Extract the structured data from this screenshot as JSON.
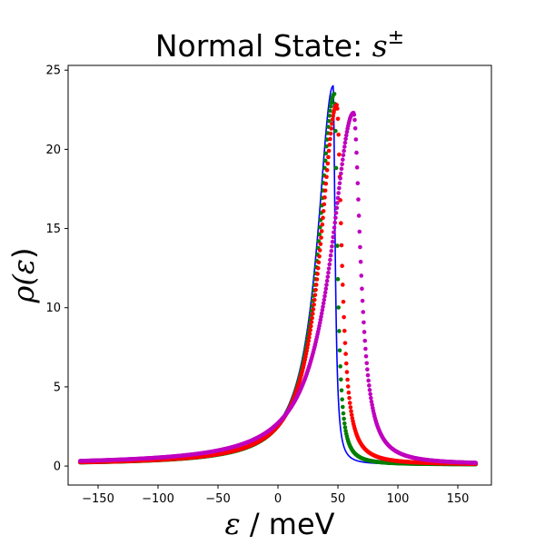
{
  "chart_data": {
    "type": "scatter",
    "title": {
      "prefix": "Normal State: ",
      "symbol": "s",
      "superscript": "±"
    },
    "xlabel": {
      "symbol": "ε",
      "text": " / meV"
    },
    "ylabel": {
      "prefix": "ρ(",
      "symbol": "ε",
      "suffix": ")"
    },
    "xlim": [
      -175,
      178
    ],
    "ylim": [
      -1.2,
      25.3
    ],
    "xticks": [
      -150,
      -100,
      -50,
      0,
      50,
      100,
      150
    ],
    "yticks": [
      0,
      5,
      10,
      15,
      20,
      25
    ],
    "grid": false,
    "legend": "none",
    "series": [
      {
        "name": "blue",
        "color": "#0000ff",
        "render": "line",
        "peak_x": 46,
        "peak_y": 24.0,
        "gamma_left": 16,
        "gamma_right": 2.0,
        "baseline": 0.1,
        "x_range": [
          -165,
          165
        ]
      },
      {
        "name": "green",
        "color": "#007f00",
        "render": "points",
        "peak_x": 47,
        "peak_y": 23.5,
        "gamma_left": 16,
        "gamma_right": 3.0,
        "baseline": 0.1,
        "x_range": [
          -165,
          165
        ]
      },
      {
        "name": "red",
        "color": "#ff0000",
        "render": "points",
        "peak_x": 49,
        "peak_y": 22.8,
        "gamma_left": 17,
        "gamma_right": 5.0,
        "baseline": 0.1,
        "x_range": [
          -165,
          165
        ]
      },
      {
        "name": "magenta",
        "color": "#bf00bf",
        "render": "points",
        "peak_x": 63,
        "peak_y": 22.3,
        "gamma_left": 23,
        "gamma_right": 7.0,
        "baseline": 0.1,
        "x_range": [
          -165,
          165
        ]
      }
    ]
  }
}
